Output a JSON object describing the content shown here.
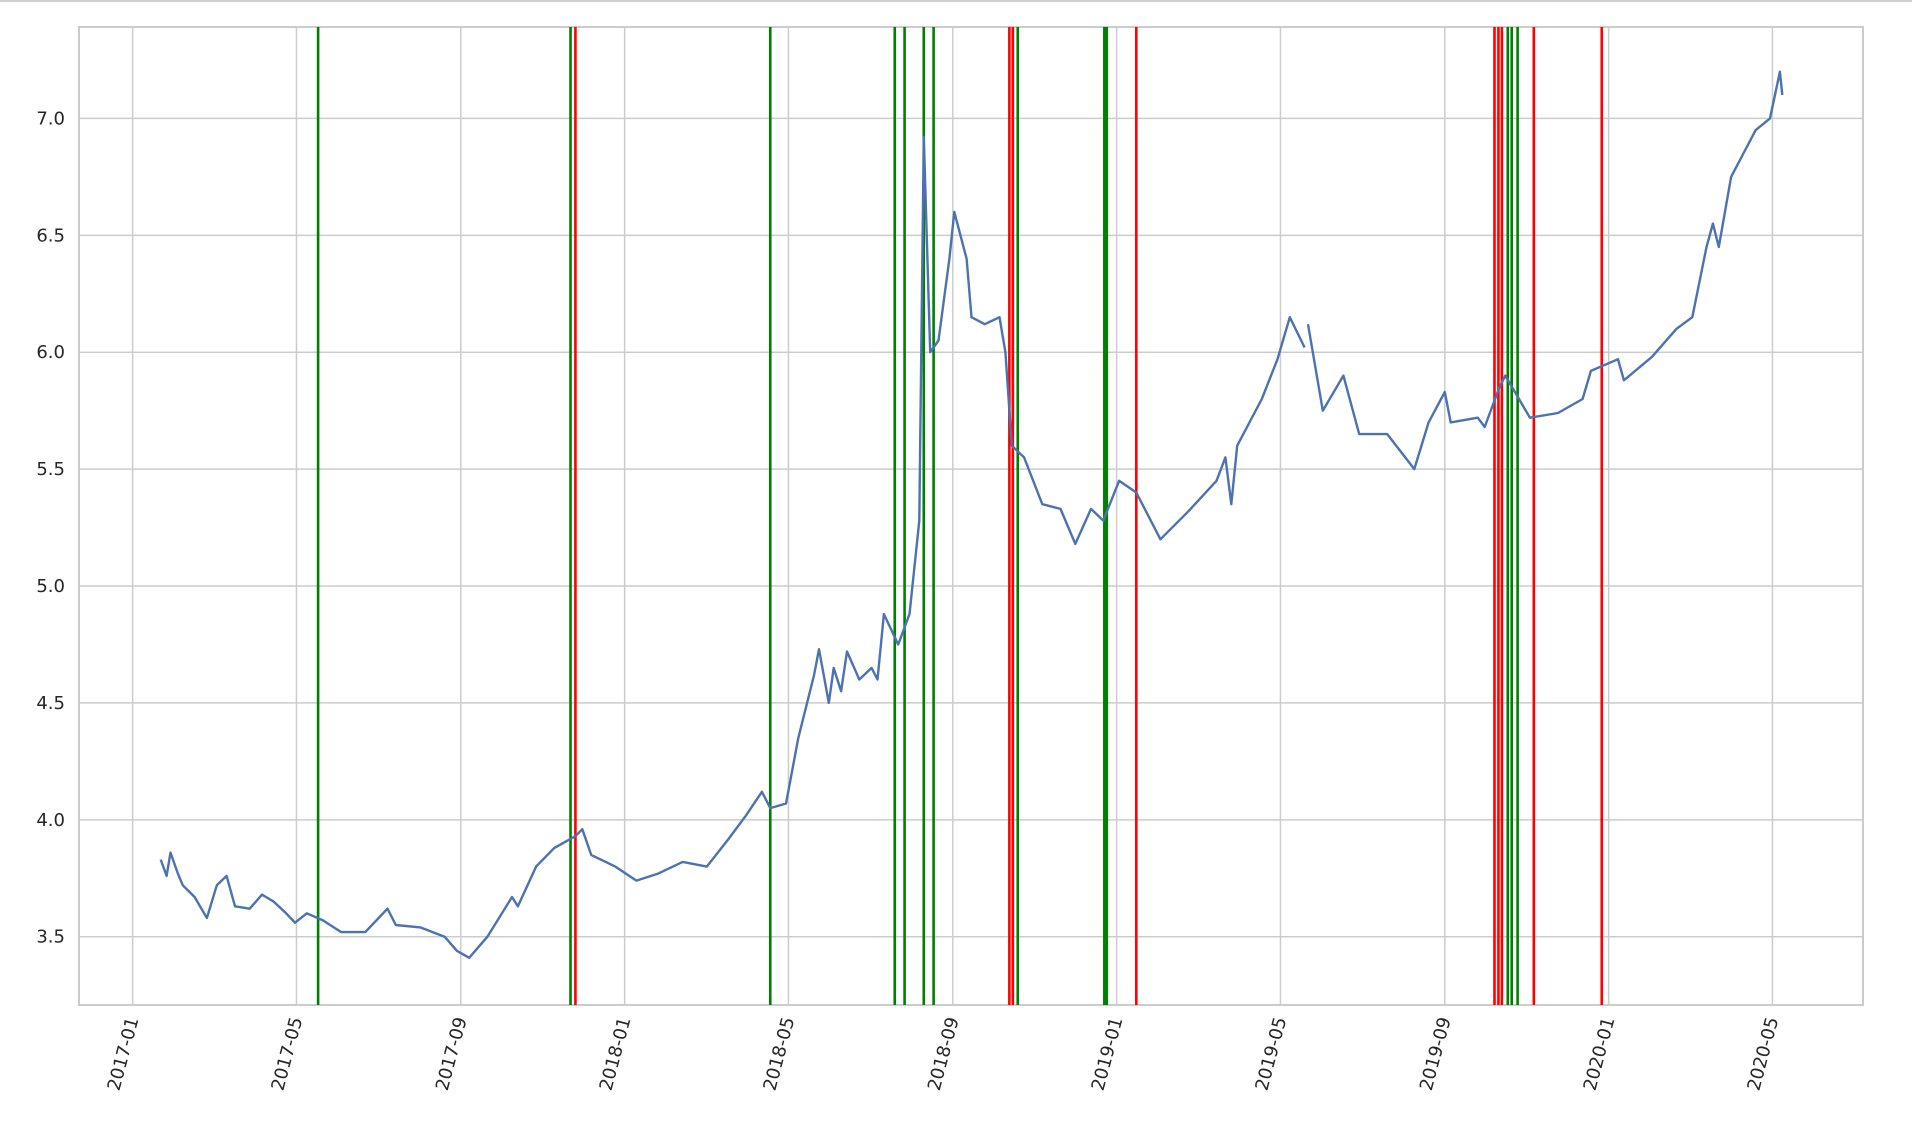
{
  "chart_data": {
    "type": "line",
    "x": [
      2017.057,
      2017.069,
      2017.077,
      2017.092,
      2017.102,
      2017.126,
      2017.151,
      2017.171,
      2017.191,
      2017.208,
      2017.238,
      2017.263,
      2017.287,
      2017.312,
      2017.33,
      2017.354,
      2017.387,
      2017.424,
      2017.473,
      2017.518,
      2017.535,
      2017.585,
      2017.634,
      2017.659,
      2017.684,
      2017.721,
      2017.771,
      2017.783,
      2017.82,
      2017.857,
      2017.9,
      2017.914,
      2017.932,
      2017.981,
      2018.024,
      2018.068,
      2018.118,
      2018.167,
      2018.212,
      2018.247,
      2018.279,
      2018.296,
      2018.328,
      2018.353,
      2018.385,
      2018.395,
      2018.415,
      2018.425,
      2018.44,
      2018.452,
      2018.477,
      2018.502,
      2018.514,
      2018.527,
      2018.556,
      2018.579,
      2018.599,
      2018.608,
      2018.621,
      2018.638,
      2018.66,
      2018.67,
      2018.695,
      2018.705,
      2018.732,
      2018.762,
      2018.774,
      2018.787,
      2018.812,
      2018.849,
      2018.886,
      2018.916,
      2018.948,
      2018.973,
      2019.005,
      2019.04,
      2019.089,
      2019.146,
      2019.203,
      2019.221,
      2019.233,
      2019.245,
      2019.295,
      2019.327,
      2019.352,
      2019.382,
      2019.385,
      2019.389,
      2019.419,
      2019.461,
      2019.493,
      2019.55,
      2019.605,
      2019.634,
      2019.667,
      2019.679,
      2019.734,
      2019.748,
      2019.778,
      2019.79,
      2019.84,
      2019.897,
      2019.947,
      2019.964,
      2020.019,
      2020.031,
      2020.088,
      2020.138,
      2020.17,
      2020.199,
      2020.212,
      2020.224,
      2020.249,
      2020.274,
      2020.299,
      2020.328,
      2020.348,
      2020.353
    ],
    "series": [
      {
        "color": "#4c72b0",
        "values": [
          3.83,
          3.76,
          3.86,
          3.77,
          3.72,
          3.67,
          3.58,
          3.72,
          3.76,
          3.63,
          3.62,
          3.68,
          3.65,
          3.6,
          3.56,
          3.6,
          3.57,
          3.52,
          3.52,
          3.62,
          3.55,
          3.54,
          3.5,
          3.44,
          3.41,
          3.5,
          3.67,
          3.63,
          3.8,
          3.88,
          3.93,
          3.96,
          3.85,
          3.8,
          3.74,
          3.77,
          3.82,
          3.8,
          3.92,
          4.02,
          4.12,
          4.05,
          4.07,
          4.35,
          4.62,
          4.73,
          4.5,
          4.65,
          4.55,
          4.72,
          4.6,
          4.65,
          4.6,
          4.88,
          4.75,
          4.88,
          5.28,
          6.92,
          6.0,
          6.05,
          6.4,
          6.6,
          6.4,
          6.15,
          6.12,
          6.15,
          6.0,
          5.6,
          5.55,
          5.35,
          5.33,
          5.18,
          5.33,
          5.28,
          5.45,
          5.4,
          5.2,
          5.32,
          5.45,
          5.55,
          5.35,
          5.6,
          5.8,
          5.97,
          6.15,
          6.02,
          null,
          6.12,
          5.75,
          5.9,
          5.65,
          5.65,
          5.5,
          5.7,
          5.83,
          5.7,
          5.72,
          5.68,
          5.85,
          5.9,
          5.72,
          5.74,
          5.8,
          5.92,
          5.97,
          5.88,
          5.98,
          6.1,
          6.15,
          6.45,
          6.55,
          6.45,
          6.75,
          6.85,
          6.95,
          7.0,
          7.2,
          7.1
        ]
      }
    ],
    "markers": [
      {
        "color": "#008000",
        "x": [
          2017.377,
          2017.89,
          2018.296,
          2018.549,
          2018.569,
          2018.608,
          2018.628,
          2018.799,
          2018.975,
          2018.98,
          2019.795,
          2019.803,
          2019.815
        ]
      },
      {
        "color": "#ff0000",
        "x": [
          2017.9,
          2018.782,
          2018.789,
          2019.04,
          2019.768,
          2019.776,
          2019.783,
          2019.848,
          2019.986
        ]
      }
    ],
    "xlim": [
      2016.891,
      2020.517
    ],
    "ylim": [
      3.208,
      7.391
    ],
    "xticks": [
      {
        "value": 2017.0,
        "label": "2017-01"
      },
      {
        "value": 2017.333,
        "label": "2017-05"
      },
      {
        "value": 2017.667,
        "label": "2017-09"
      },
      {
        "value": 2018.0,
        "label": "2018-01"
      },
      {
        "value": 2018.333,
        "label": "2018-05"
      },
      {
        "value": 2018.667,
        "label": "2018-09"
      },
      {
        "value": 2019.0,
        "label": "2019-01"
      },
      {
        "value": 2019.333,
        "label": "2019-05"
      },
      {
        "value": 2019.667,
        "label": "2019-09"
      },
      {
        "value": 2020.0,
        "label": "2020-01"
      },
      {
        "value": 2020.333,
        "label": "2020-05"
      }
    ],
    "yticks": [
      {
        "value": 3.5,
        "label": "3.5"
      },
      {
        "value": 4.0,
        "label": "4.0"
      },
      {
        "value": 4.5,
        "label": "4.5"
      },
      {
        "value": 5.0,
        "label": "5.0"
      },
      {
        "value": 5.5,
        "label": "5.5"
      },
      {
        "value": 6.0,
        "label": "6.0"
      },
      {
        "value": 6.5,
        "label": "6.5"
      },
      {
        "value": 7.0,
        "label": "7.0"
      }
    ],
    "grid": true
  }
}
